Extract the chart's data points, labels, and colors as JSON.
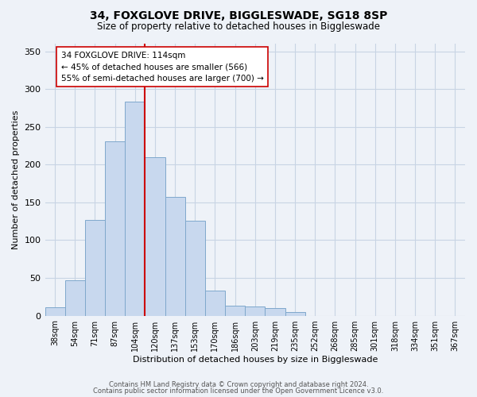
{
  "title": "34, FOXGLOVE DRIVE, BIGGLESWADE, SG18 8SP",
  "subtitle": "Size of property relative to detached houses in Biggleswade",
  "xlabel": "Distribution of detached houses by size in Biggleswade",
  "ylabel": "Number of detached properties",
  "bar_labels": [
    "38sqm",
    "54sqm",
    "71sqm",
    "87sqm",
    "104sqm",
    "120sqm",
    "137sqm",
    "153sqm",
    "170sqm",
    "186sqm",
    "203sqm",
    "219sqm",
    "235sqm",
    "252sqm",
    "268sqm",
    "285sqm",
    "301sqm",
    "318sqm",
    "334sqm",
    "351sqm",
    "367sqm"
  ],
  "bar_values": [
    11,
    47,
    127,
    231,
    283,
    210,
    157,
    126,
    33,
    13,
    12,
    10,
    5,
    0,
    0,
    0,
    0,
    0,
    0,
    0,
    0
  ],
  "bar_color": "#c8d8ee",
  "bar_edge_color": "#7fa8cc",
  "grid_color": "#c8d4e4",
  "background_color": "#eef2f8",
  "vline_x_index": 4,
  "vline_color": "#cc0000",
  "annotation_line1": "34 FOXGLOVE DRIVE: 114sqm",
  "annotation_line2": "← 45% of detached houses are smaller (566)",
  "annotation_line3": "55% of semi-detached houses are larger (700) →",
  "annotation_box_color": "#ffffff",
  "annotation_box_edge": "#cc0000",
  "ylim": [
    0,
    360
  ],
  "yticks": [
    0,
    50,
    100,
    150,
    200,
    250,
    300,
    350
  ],
  "footer1": "Contains HM Land Registry data © Crown copyright and database right 2024.",
  "footer2": "Contains public sector information licensed under the Open Government Licence v3.0."
}
